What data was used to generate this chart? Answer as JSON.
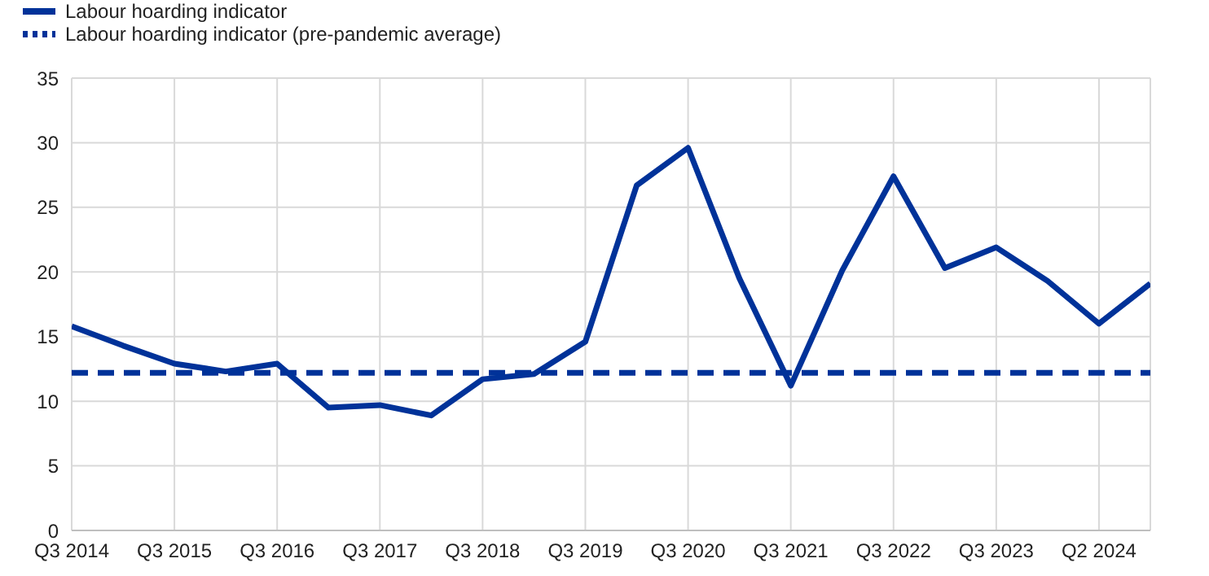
{
  "chart_data": {
    "type": "line",
    "categories": [
      "Q3 2014",
      null,
      "Q3 2015",
      null,
      "Q3 2016",
      null,
      "Q3 2017",
      null,
      "Q3 2018",
      null,
      "Q3 2019",
      null,
      "Q3 2020",
      null,
      "Q3 2021",
      null,
      "Q3 2022",
      null,
      "Q3 2023",
      null,
      "Q2 2024",
      null
    ],
    "series": [
      {
        "name": "Labour hoarding indicator",
        "color": "#003299",
        "values": [
          15.8,
          14.3,
          12.9,
          12.3,
          12.9,
          9.5,
          9.7,
          8.9,
          11.7,
          12.1,
          14.6,
          26.7,
          29.6,
          19.5,
          11.2,
          20.1,
          27.4,
          20.3,
          21.9,
          19.3,
          16.0,
          19.1
        ]
      }
    ],
    "ref_lines": [
      {
        "axis": "y",
        "value": 12.2,
        "label": "Labour hoarding indicator (pre-pandemic average)",
        "color": "#003299",
        "line_style": "dashed"
      }
    ],
    "ylim": [
      0,
      35
    ],
    "yticks": [
      0,
      5,
      10,
      15,
      20,
      25,
      30,
      35
    ],
    "grid": true,
    "legend": "top left",
    "marker": "none",
    "line_style": "solid"
  }
}
